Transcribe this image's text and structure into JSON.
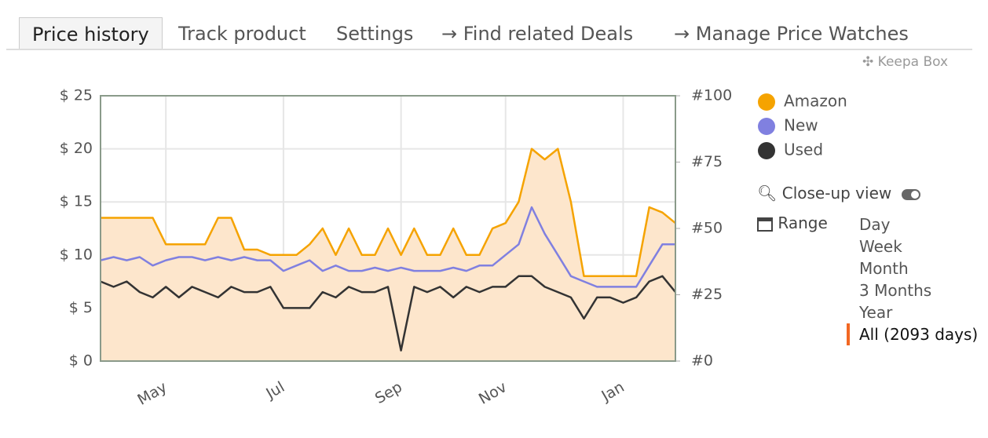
{
  "tabs": [
    "Price history",
    "Track product",
    "Settings",
    "→ Find related Deals",
    "→ Manage Price Watches"
  ],
  "box_label": "✣ Keepa Box",
  "close_up_label": "Close-up view",
  "range_label": "Range",
  "range_options": [
    "Day",
    "Week",
    "Month",
    "3 Months",
    "Year",
    "All (2093 days)"
  ],
  "chart_data": {
    "type": "line",
    "categories": [
      null,
      null,
      null,
      null,
      null,
      "May",
      null,
      null,
      null,
      null,
      null,
      null,
      null,
      null,
      "Jul",
      null,
      null,
      null,
      null,
      null,
      null,
      null,
      null,
      "Sep",
      null,
      null,
      null,
      null,
      null,
      null,
      null,
      "Nov",
      null,
      null,
      null,
      null,
      null,
      null,
      null,
      null,
      "Jan",
      null,
      null,
      null,
      null
    ],
    "series": [
      {
        "name": "Amazon",
        "color": "#f5a300",
        "fill": "#fde6cc",
        "values": [
          13.5,
          13.5,
          13.5,
          13.5,
          13.5,
          11,
          11,
          11,
          11,
          13.5,
          13.5,
          10.5,
          10.5,
          10,
          10,
          10,
          11,
          12.5,
          10,
          12.5,
          10,
          10,
          12.5,
          10,
          12.5,
          10,
          10,
          12.5,
          10,
          10,
          12.5,
          13,
          15,
          20,
          19,
          20,
          15,
          8,
          8,
          8,
          8,
          8,
          14.5,
          14,
          13
        ]
      },
      {
        "name": "New",
        "color": "#8080e0",
        "values": [
          9.5,
          9.8,
          9.5,
          9.8,
          9,
          9.5,
          9.8,
          9.8,
          9.5,
          9.8,
          9.5,
          9.8,
          9.5,
          9.5,
          8.5,
          9,
          9.5,
          8.5,
          9,
          8.5,
          8.5,
          8.8,
          8.5,
          8.8,
          8.5,
          8.5,
          8.5,
          8.8,
          8.5,
          9,
          9,
          10,
          11,
          14.5,
          12,
          10,
          8,
          7.5,
          7,
          7,
          7,
          7,
          9,
          11,
          11
        ]
      },
      {
        "name": "Used",
        "color": "#333333",
        "values": [
          7.5,
          7,
          7.5,
          6.5,
          6,
          7,
          6,
          7,
          6.5,
          6,
          7,
          6.5,
          6.5,
          7,
          5,
          5,
          5,
          6.5,
          6,
          7,
          6.5,
          6.5,
          7,
          1,
          7,
          6.5,
          7,
          6,
          7,
          6.5,
          7,
          7,
          8,
          8,
          7,
          6.5,
          6,
          4,
          6,
          6,
          5.5,
          6,
          7.5,
          8,
          6.5
        ]
      }
    ],
    "ylim": [
      0,
      25
    ],
    "yticks": [
      {
        "value": 0,
        "label": "$ 0"
      },
      {
        "value": 5,
        "label": "$ 5"
      },
      {
        "value": 10,
        "label": "$ 10"
      },
      {
        "value": 15,
        "label": "$ 15"
      },
      {
        "value": 20,
        "label": "$ 20"
      },
      {
        "value": 25,
        "label": "$ 25"
      }
    ],
    "y2lim": [
      0,
      100
    ],
    "y2ticks": [
      {
        "value": 0,
        "label": "#0"
      },
      {
        "value": 25,
        "label": "#25"
      },
      {
        "value": 50,
        "label": "#50"
      },
      {
        "value": 75,
        "label": "#75"
      },
      {
        "value": 100,
        "label": "#100"
      }
    ],
    "grid": true
  }
}
